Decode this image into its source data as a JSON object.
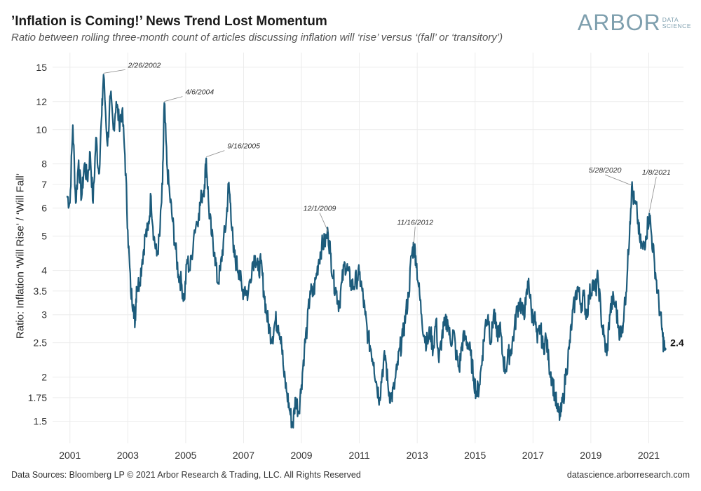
{
  "chart_data": {
    "type": "line",
    "title": "’Inflation is Coming!’ News Trend Lost Momentum",
    "subtitle": "Ratio between rolling three-month count of articles discussing inflation will ‘rise’ versus ‘(fall’ or ‘transitory’)",
    "ylabel": "Ratio: Inflation ‘Will Rise’ / ‘Will Fall’",
    "xlabel": "",
    "yscale": "log",
    "ylim": [
      1.3,
      16.5
    ],
    "xlim": [
      2000.4,
      2022.2
    ],
    "y_ticks": [
      1.5,
      1.75,
      2,
      2.5,
      3,
      3.5,
      4,
      5,
      6,
      7,
      8,
      10,
      12,
      15
    ],
    "y_tick_labels": [
      "1.5",
      "1.75",
      "2",
      "2.5",
      "3",
      "3.5",
      "4",
      "5",
      "6",
      "7",
      "8",
      "10",
      "12",
      "15"
    ],
    "x_ticks": [
      2001,
      2003,
      2005,
      2007,
      2009,
      2011,
      2013,
      2015,
      2017,
      2019,
      2021
    ],
    "x_tick_labels": [
      "2001",
      "2003",
      "2005",
      "2007",
      "2009",
      "2011",
      "2013",
      "2015",
      "2017",
      "2019",
      "2021"
    ],
    "series": [
      {
        "name": "Ratio",
        "color": "#1c5b7b",
        "points": [
          [
            2000.9,
            6.5
          ],
          [
            2001.0,
            6.2
          ],
          [
            2001.1,
            10.3
          ],
          [
            2001.2,
            6.2
          ],
          [
            2001.3,
            8.2
          ],
          [
            2001.4,
            6.4
          ],
          [
            2001.5,
            8.0
          ],
          [
            2001.6,
            7.2
          ],
          [
            2001.7,
            8.6
          ],
          [
            2001.8,
            6.2
          ],
          [
            2001.9,
            9.5
          ],
          [
            2002.0,
            7.5
          ],
          [
            2002.1,
            11.0
          ],
          [
            2002.16,
            14.3
          ],
          [
            2002.3,
            9.0
          ],
          [
            2002.4,
            12.5
          ],
          [
            2002.5,
            10.0
          ],
          [
            2002.6,
            12.0
          ],
          [
            2002.7,
            10.5
          ],
          [
            2002.8,
            11.3
          ],
          [
            2002.9,
            8.5
          ],
          [
            2003.0,
            5.2
          ],
          [
            2003.1,
            3.5
          ],
          [
            2003.2,
            3.2
          ],
          [
            2003.25,
            2.85
          ],
          [
            2003.3,
            3.6
          ],
          [
            2003.4,
            3.7
          ],
          [
            2003.5,
            4.3
          ],
          [
            2003.6,
            5.0
          ],
          [
            2003.7,
            5.2
          ],
          [
            2003.8,
            6.5
          ],
          [
            2003.9,
            5.0
          ],
          [
            2004.0,
            4.4
          ],
          [
            2004.1,
            5.0
          ],
          [
            2004.2,
            7.0
          ],
          [
            2004.26,
            11.9
          ],
          [
            2004.35,
            8.0
          ],
          [
            2004.45,
            6.5
          ],
          [
            2004.55,
            5.5
          ],
          [
            2004.65,
            4.6
          ],
          [
            2004.75,
            3.9
          ],
          [
            2004.85,
            3.7
          ],
          [
            2004.95,
            3.3
          ],
          [
            2005.05,
            4.3
          ],
          [
            2005.15,
            4.0
          ],
          [
            2005.3,
            5.2
          ],
          [
            2005.45,
            5.8
          ],
          [
            2005.55,
            6.5
          ],
          [
            2005.65,
            7.0
          ],
          [
            2005.71,
            8.3
          ],
          [
            2005.8,
            6.0
          ],
          [
            2005.9,
            5.0
          ],
          [
            2006.0,
            4.5
          ],
          [
            2006.1,
            3.7
          ],
          [
            2006.2,
            4.0
          ],
          [
            2006.3,
            4.8
          ],
          [
            2006.4,
            5.5
          ],
          [
            2006.48,
            7.0
          ],
          [
            2006.55,
            6.2
          ],
          [
            2006.65,
            4.5
          ],
          [
            2006.75,
            4.2
          ],
          [
            2006.85,
            4.0
          ],
          [
            2006.95,
            3.5
          ],
          [
            2007.05,
            3.6
          ],
          [
            2007.15,
            3.4
          ],
          [
            2007.3,
            4.2
          ],
          [
            2007.4,
            4.4
          ],
          [
            2007.5,
            4.0
          ],
          [
            2007.6,
            4.2
          ],
          [
            2007.7,
            3.5
          ],
          [
            2007.8,
            3.0
          ],
          [
            2007.9,
            2.7
          ],
          [
            2008.0,
            2.6
          ],
          [
            2008.1,
            2.9
          ],
          [
            2008.2,
            2.8
          ],
          [
            2008.3,
            2.6
          ],
          [
            2008.4,
            2.0
          ],
          [
            2008.5,
            1.8
          ],
          [
            2008.6,
            1.6
          ],
          [
            2008.7,
            1.45
          ],
          [
            2008.8,
            1.75
          ],
          [
            2008.9,
            1.6
          ],
          [
            2009.0,
            1.9
          ],
          [
            2009.1,
            2.4
          ],
          [
            2009.2,
            2.8
          ],
          [
            2009.3,
            3.5
          ],
          [
            2009.4,
            3.4
          ],
          [
            2009.5,
            3.8
          ],
          [
            2009.6,
            4.3
          ],
          [
            2009.7,
            4.7
          ],
          [
            2009.8,
            4.8
          ],
          [
            2009.92,
            5.1
          ],
          [
            2010.0,
            4.5
          ],
          [
            2010.1,
            3.8
          ],
          [
            2010.2,
            3.5
          ],
          [
            2010.3,
            3.2
          ],
          [
            2010.4,
            3.7
          ],
          [
            2010.5,
            4.2
          ],
          [
            2010.6,
            4.0
          ],
          [
            2010.7,
            3.7
          ],
          [
            2010.8,
            3.6
          ],
          [
            2010.9,
            3.8
          ],
          [
            2011.0,
            3.9
          ],
          [
            2011.1,
            3.5
          ],
          [
            2011.2,
            3.0
          ],
          [
            2011.3,
            2.6
          ],
          [
            2011.4,
            2.4
          ],
          [
            2011.5,
            2.2
          ],
          [
            2011.6,
            1.9
          ],
          [
            2011.7,
            1.75
          ],
          [
            2011.8,
            2.1
          ],
          [
            2011.9,
            2.3
          ],
          [
            2012.0,
            1.85
          ],
          [
            2012.1,
            1.75
          ],
          [
            2012.2,
            1.85
          ],
          [
            2012.3,
            2.1
          ],
          [
            2012.4,
            2.4
          ],
          [
            2012.5,
            2.6
          ],
          [
            2012.6,
            3.0
          ],
          [
            2012.7,
            3.4
          ],
          [
            2012.8,
            4.4
          ],
          [
            2012.88,
            4.7
          ],
          [
            2012.95,
            4.4
          ],
          [
            2013.05,
            3.6
          ],
          [
            2013.15,
            3.0
          ],
          [
            2013.25,
            2.6
          ],
          [
            2013.35,
            2.5
          ],
          [
            2013.45,
            2.7
          ],
          [
            2013.55,
            2.4
          ],
          [
            2013.65,
            2.9
          ],
          [
            2013.75,
            2.2
          ],
          [
            2013.85,
            2.6
          ],
          [
            2013.95,
            2.8
          ],
          [
            2014.05,
            2.9
          ],
          [
            2014.15,
            2.5
          ],
          [
            2014.25,
            2.7
          ],
          [
            2014.35,
            2.3
          ],
          [
            2014.45,
            2.1
          ],
          [
            2014.55,
            2.5
          ],
          [
            2014.65,
            2.6
          ],
          [
            2014.75,
            2.5
          ],
          [
            2014.85,
            2.3
          ],
          [
            2014.95,
            2.0
          ],
          [
            2015.05,
            1.8
          ],
          [
            2015.15,
            1.9
          ],
          [
            2015.25,
            2.3
          ],
          [
            2015.35,
            2.8
          ],
          [
            2015.45,
            3.0
          ],
          [
            2015.55,
            2.5
          ],
          [
            2015.65,
            3.1
          ],
          [
            2015.75,
            2.6
          ],
          [
            2015.85,
            2.8
          ],
          [
            2015.95,
            2.3
          ],
          [
            2016.05,
            2.1
          ],
          [
            2016.15,
            2.3
          ],
          [
            2016.25,
            2.4
          ],
          [
            2016.35,
            2.7
          ],
          [
            2016.45,
            3.1
          ],
          [
            2016.55,
            3.3
          ],
          [
            2016.65,
            3.0
          ],
          [
            2016.75,
            3.2
          ],
          [
            2016.85,
            3.8
          ],
          [
            2016.95,
            3.0
          ],
          [
            2017.05,
            3.0
          ],
          [
            2017.15,
            2.5
          ],
          [
            2017.25,
            2.8
          ],
          [
            2017.35,
            2.4
          ],
          [
            2017.45,
            2.6
          ],
          [
            2017.55,
            2.2
          ],
          [
            2017.65,
            2.0
          ],
          [
            2017.75,
            1.8
          ],
          [
            2017.85,
            1.6
          ],
          [
            2017.95,
            1.55
          ],
          [
            2018.05,
            1.75
          ],
          [
            2018.15,
            2.1
          ],
          [
            2018.25,
            2.4
          ],
          [
            2018.35,
            2.9
          ],
          [
            2018.45,
            3.3
          ],
          [
            2018.55,
            3.6
          ],
          [
            2018.65,
            3.2
          ],
          [
            2018.75,
            3.4
          ],
          [
            2018.85,
            3.0
          ],
          [
            2018.95,
            3.4
          ],
          [
            2019.05,
            3.7
          ],
          [
            2019.15,
            3.5
          ],
          [
            2019.25,
            3.8
          ],
          [
            2019.35,
            3.0
          ],
          [
            2019.45,
            2.6
          ],
          [
            2019.55,
            2.3
          ],
          [
            2019.65,
            3.0
          ],
          [
            2019.75,
            3.3
          ],
          [
            2019.85,
            3.2
          ],
          [
            2019.95,
            2.8
          ],
          [
            2020.05,
            2.6
          ],
          [
            2020.15,
            3.1
          ],
          [
            2020.25,
            3.8
          ],
          [
            2020.35,
            5.5
          ],
          [
            2020.41,
            6.9
          ],
          [
            2020.5,
            6.2
          ],
          [
            2020.6,
            5.8
          ],
          [
            2020.7,
            4.8
          ],
          [
            2020.8,
            4.6
          ],
          [
            2020.9,
            5.0
          ],
          [
            2021.02,
            5.8
          ],
          [
            2021.1,
            5.0
          ],
          [
            2021.2,
            4.2
          ],
          [
            2021.3,
            3.5
          ],
          [
            2021.4,
            3.0
          ],
          [
            2021.48,
            2.6
          ],
          [
            2021.55,
            2.4
          ]
        ]
      }
    ],
    "annotations": [
      {
        "label": "2/26/2002",
        "x": 2002.16,
        "y": 14.3
      },
      {
        "label": "4/6/2004",
        "x": 2004.26,
        "y": 11.9
      },
      {
        "label": "9/16/2005",
        "x": 2005.71,
        "y": 8.3
      },
      {
        "label": "12/1/2009",
        "x": 2009.92,
        "y": 5.1
      },
      {
        "label": "11/16/2012",
        "x": 2012.88,
        "y": 4.7
      },
      {
        "label": "5/28/2020",
        "x": 2020.41,
        "y": 6.9
      },
      {
        "label": "1/8/2021",
        "x": 2021.02,
        "y": 5.8
      }
    ],
    "end_value": {
      "label": "2.4",
      "x": 2021.55,
      "y": 2.4
    }
  },
  "logo": {
    "main": "ARBOR",
    "sub_line1": "DATA",
    "sub_line2": "SCIENCE"
  },
  "footer": {
    "sources": "Data Sources: Bloomberg LP © 2021 Arbor Research & Trading, LLC. All Rights Reserved",
    "website": "datascience.arborresearch.com"
  },
  "colors": {
    "line": "#1c5b7b",
    "grid": "#ececec",
    "logo": "#7e9fae"
  }
}
